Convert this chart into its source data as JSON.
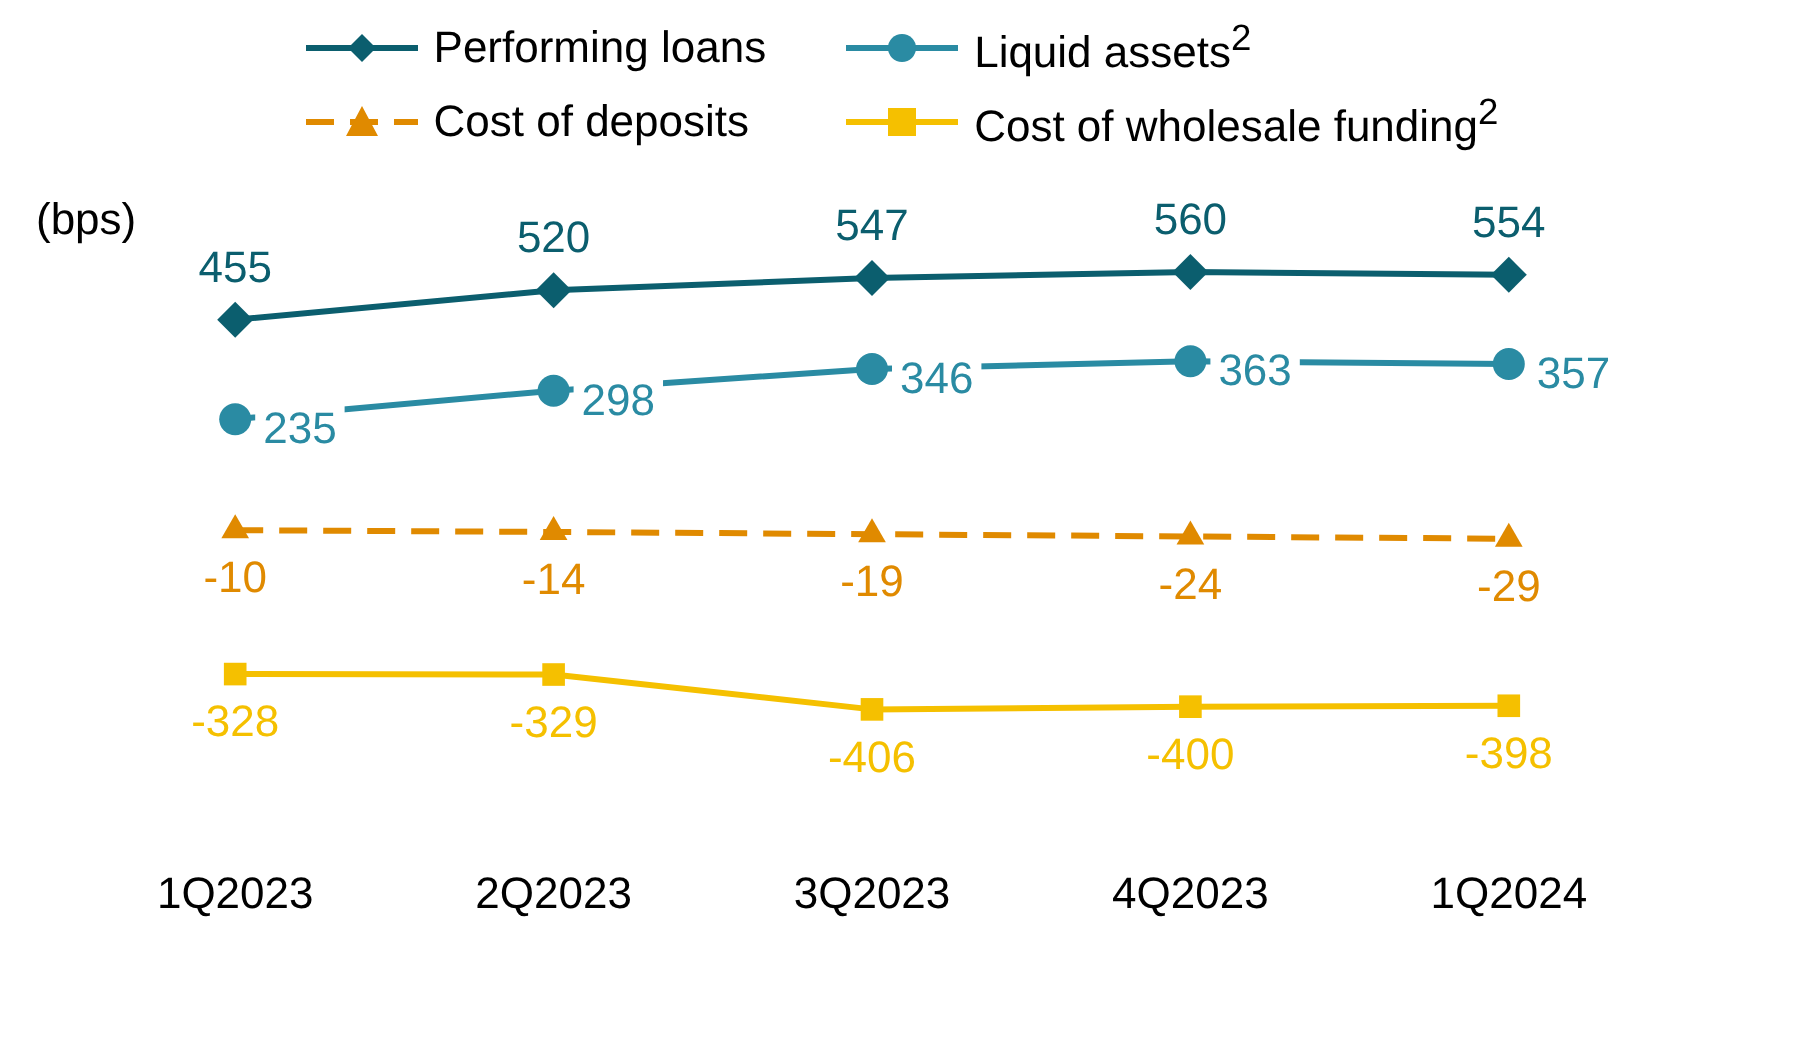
{
  "chart_data": {
    "type": "line",
    "ylabel": "(bps)",
    "categories": [
      "1Q2023",
      "2Q2023",
      "3Q2023",
      "4Q2023",
      "1Q2024"
    ],
    "series": [
      {
        "name": "Performing loans",
        "color": "#0b5e6e",
        "marker": "diamond",
        "line_style": "solid",
        "values": [
          455,
          520,
          547,
          560,
          554
        ]
      },
      {
        "name": "Liquid assets$^{2}$",
        "color": "#2a8ba3",
        "marker": "circle",
        "line_style": "solid",
        "values": [
          235,
          298,
          346,
          363,
          357
        ]
      },
      {
        "name": "Cost of deposits",
        "color": "#e08a00",
        "marker": "triangle",
        "line_style": "dashed",
        "values": [
          -10,
          -14,
          -19,
          -24,
          -29
        ]
      },
      {
        "name": "Cost of wholesale funding$^{2}$",
        "color": "#f5c000",
        "marker": "square",
        "line_style": "solid",
        "values": [
          -328,
          -329,
          -406,
          -400,
          -398
        ]
      }
    ],
    "data_labels": true,
    "legend": "top",
    "grid": false,
    "tick_labels": "x"
  }
}
